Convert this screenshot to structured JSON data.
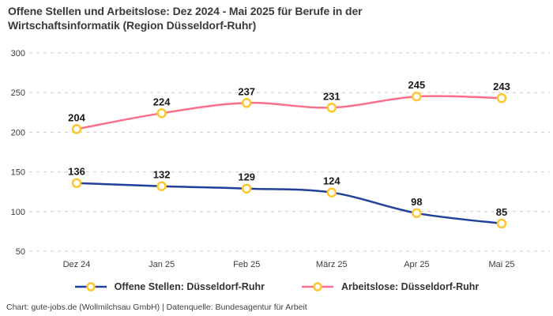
{
  "header": {
    "title": "Offene Stellen und Arbeitslose: Dez 2024 - Mai 2025 für Berufe in der Wirtschaftsinformatik (Region Düsseldorf-Ruhr)"
  },
  "chart_data": {
    "type": "line",
    "title": "Offene Stellen und Arbeitslose: Dez 2024 - Mai 2025 für Berufe in der Wirtschaftsinformatik (Region Düsseldorf-Ruhr)",
    "categories": [
      "Dez 24",
      "Jan 25",
      "Feb 25",
      "März 25",
      "Apr 25",
      "Mai 25"
    ],
    "series": [
      {
        "name": "Offene Stellen: Düsseldorf-Ruhr",
        "values": [
          136,
          132,
          129,
          124,
          98,
          85
        ],
        "color": "#20409A"
      },
      {
        "name": "Arbeitslose: Düsseldorf-Ruhr",
        "values": [
          204,
          224,
          237,
          231,
          245,
          243
        ],
        "color": "#F8708A"
      }
    ],
    "marker": {
      "shape": "circle",
      "fill": "#FFFFFF",
      "stroke": "#FFC62E"
    },
    "ylim": [
      50,
      300
    ],
    "yticks": [
      50,
      100,
      150,
      200,
      250,
      300
    ],
    "grid": "horizontal-dashed",
    "grid_color": "#CCCCCC",
    "tick_label_color": "#3C3C3C",
    "value_label_color": "#1A1A1A",
    "value_labels": true,
    "legend_position": "bottom",
    "smoothing": true
  },
  "footer": {
    "credit": "Chart: gute-jobs.de (Wollmilchsau GmbH) | Datenquelle: Bundesagentur für Arbeit"
  }
}
